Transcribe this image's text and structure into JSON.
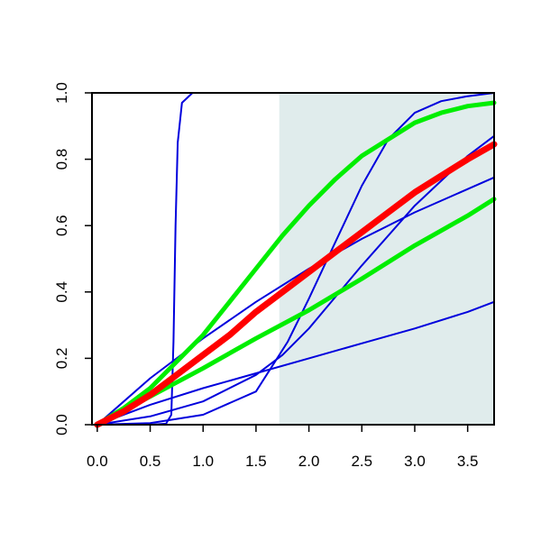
{
  "chart_data": {
    "type": "line",
    "title": "",
    "xlabel": "",
    "ylabel": "",
    "xlim": [
      -0.05,
      3.75
    ],
    "ylim": [
      0,
      1
    ],
    "grid": false,
    "legend": "none",
    "x_ticks": [
      0.0,
      0.5,
      1.0,
      1.5,
      2.0,
      2.5,
      3.0,
      3.5
    ],
    "x_tick_labels": [
      "0.0",
      "0.5",
      "1.0",
      "1.5",
      "2.0",
      "2.5",
      "3.0",
      "3.5"
    ],
    "y_ticks": [
      0.0,
      0.2,
      0.4,
      0.6,
      0.8,
      1.0
    ],
    "y_tick_labels": [
      "0.0",
      "0.2",
      "0.4",
      "0.6",
      "0.8",
      "1.0"
    ],
    "shaded_region": {
      "x_from": 1.72,
      "x_to": 3.75,
      "color": "#e0ecec"
    },
    "colors": {
      "blue": "#0000dd",
      "red": "#ff0000",
      "green": "#00ee00"
    },
    "series": [
      {
        "color": "#0000dd",
        "width": 2,
        "points": [
          [
            0,
            0
          ],
          [
            0.5,
            0
          ],
          [
            0.65,
            0.003
          ],
          [
            0.7,
            0.03
          ],
          [
            0.72,
            0.25
          ],
          [
            0.74,
            0.6
          ],
          [
            0.76,
            0.85
          ],
          [
            0.8,
            0.97
          ],
          [
            0.9,
            1.0
          ],
          [
            1.5,
            1.0
          ],
          [
            3.75,
            1.0
          ]
        ]
      },
      {
        "color": "#0000dd",
        "width": 2,
        "points": [
          [
            0,
            0
          ],
          [
            0.5,
            0.005
          ],
          [
            1.0,
            0.03
          ],
          [
            1.5,
            0.1
          ],
          [
            1.8,
            0.25
          ],
          [
            2.0,
            0.38
          ],
          [
            2.25,
            0.55
          ],
          [
            2.5,
            0.72
          ],
          [
            2.75,
            0.86
          ],
          [
            3.0,
            0.94
          ],
          [
            3.25,
            0.975
          ],
          [
            3.5,
            0.99
          ],
          [
            3.75,
            1.0
          ]
        ]
      },
      {
        "color": "#0000dd",
        "width": 2,
        "points": [
          [
            0,
            0
          ],
          [
            0.5,
            0.025
          ],
          [
            1.0,
            0.07
          ],
          [
            1.5,
            0.15
          ],
          [
            1.75,
            0.21
          ],
          [
            2.0,
            0.29
          ],
          [
            2.5,
            0.48
          ],
          [
            3.0,
            0.66
          ],
          [
            3.5,
            0.81
          ],
          [
            3.75,
            0.87
          ]
        ]
      },
      {
        "color": "#0000dd",
        "width": 2,
        "points": [
          [
            0,
            0
          ],
          [
            0.5,
            0.14
          ],
          [
            1.0,
            0.26
          ],
          [
            1.5,
            0.37
          ],
          [
            2.0,
            0.47
          ],
          [
            2.5,
            0.56
          ],
          [
            3.0,
            0.64
          ],
          [
            3.5,
            0.71
          ],
          [
            3.75,
            0.745
          ]
        ]
      },
      {
        "color": "#0000dd",
        "width": 2,
        "points": [
          [
            0,
            0
          ],
          [
            0.5,
            0.06
          ],
          [
            1.0,
            0.11
          ],
          [
            1.5,
            0.155
          ],
          [
            2.0,
            0.2
          ],
          [
            2.5,
            0.245
          ],
          [
            3.0,
            0.29
          ],
          [
            3.5,
            0.34
          ],
          [
            3.75,
            0.37
          ]
        ]
      },
      {
        "color": "#00ee00",
        "width": 5,
        "points": [
          [
            0,
            0
          ],
          [
            0.25,
            0.05
          ],
          [
            0.5,
            0.11
          ],
          [
            0.75,
            0.19
          ],
          [
            1.0,
            0.27
          ],
          [
            1.25,
            0.37
          ],
          [
            1.5,
            0.47
          ],
          [
            1.75,
            0.57
          ],
          [
            2.0,
            0.66
          ],
          [
            2.25,
            0.74
          ],
          [
            2.5,
            0.81
          ],
          [
            2.75,
            0.86
          ],
          [
            3.0,
            0.91
          ],
          [
            3.25,
            0.94
          ],
          [
            3.5,
            0.96
          ],
          [
            3.75,
            0.97
          ]
        ]
      },
      {
        "color": "#00ee00",
        "width": 5,
        "points": [
          [
            0,
            0
          ],
          [
            0.5,
            0.085
          ],
          [
            1.0,
            0.17
          ],
          [
            1.5,
            0.26
          ],
          [
            2.0,
            0.345
          ],
          [
            2.5,
            0.44
          ],
          [
            3.0,
            0.54
          ],
          [
            3.5,
            0.63
          ],
          [
            3.75,
            0.68
          ]
        ]
      },
      {
        "color": "#ff0000",
        "width": 7,
        "points": [
          [
            0,
            0
          ],
          [
            0.25,
            0.04
          ],
          [
            0.5,
            0.09
          ],
          [
            0.75,
            0.15
          ],
          [
            1.0,
            0.21
          ],
          [
            1.25,
            0.27
          ],
          [
            1.5,
            0.34
          ],
          [
            1.75,
            0.4
          ],
          [
            2.0,
            0.46
          ],
          [
            2.25,
            0.52
          ],
          [
            2.5,
            0.58
          ],
          [
            2.75,
            0.64
          ],
          [
            3.0,
            0.7
          ],
          [
            3.25,
            0.75
          ],
          [
            3.5,
            0.8
          ],
          [
            3.75,
            0.845
          ]
        ]
      }
    ]
  }
}
